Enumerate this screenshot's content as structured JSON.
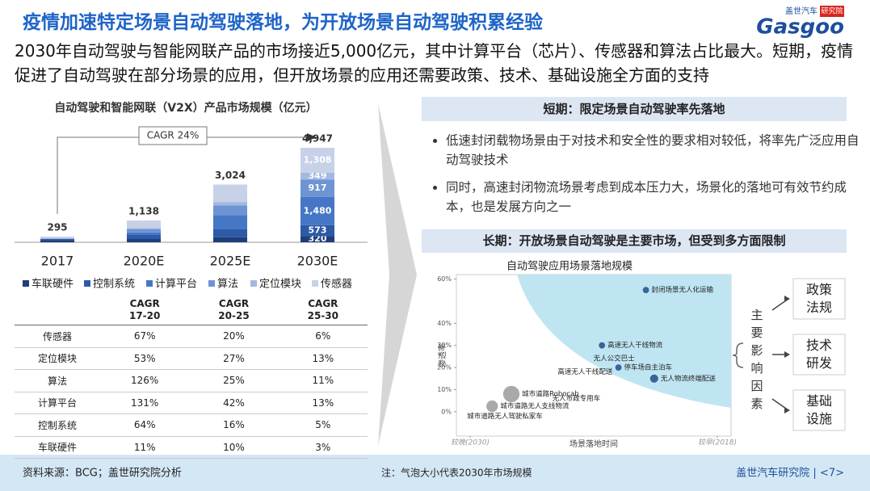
{
  "header": {
    "title": "疫情加速特定场景自动驾驶落地，为开放场景自动驾驶积累经验",
    "logo_cn": "盖世汽车",
    "logo_badge": "研究院",
    "logo_en": "Gasgoo"
  },
  "subtitle": "2030年自动驾驶与智能网联产品的市场接近5,000亿元，其中计算平台（芯片）、传感器和算法占比最大。短期，疫情促进了自动驾驶在部分场景的应用，但开放场景的应用还需要政策、技术、基础设施全方面的支持",
  "chart_data": [
    {
      "type": "bar",
      "stacked": true,
      "title": "自动驾驶和智能网联（V2X）产品市场规模（亿元）",
      "categories": [
        "2017",
        "2020E",
        "2025E",
        "2030E"
      ],
      "ylim": [
        0,
        5500
      ],
      "series": [
        {
          "name": "车联硬件",
          "color": "#1f3d7a",
          "values": [
            122,
            169,
            258,
            320
          ],
          "value_labels": [
            null,
            null,
            null,
            "320"
          ]
        },
        {
          "name": "控制系统",
          "color": "#2d5aa6",
          "values": [
            48,
            211,
            419,
            573
          ],
          "value_labels": [
            null,
            null,
            null,
            "573"
          ]
        },
        {
          "name": "计算平台",
          "color": "#4677c6",
          "values": [
            11,
            137,
            750,
            1480
          ],
          "value_labels": [
            null,
            null,
            null,
            "1,480"
          ]
        },
        {
          "name": "算法",
          "color": "#6f94d3",
          "values": [
            15,
            176,
            508,
            917
          ],
          "value_labels": [
            null,
            null,
            null,
            "917"
          ]
        },
        {
          "name": "定位模块",
          "color": "#a4b9e0",
          "values": [
            16,
            57,
            177,
            349
          ],
          "value_labels": [
            null,
            null,
            null,
            "349"
          ]
        },
        {
          "name": "传感器",
          "color": "#c7d1e8",
          "values": [
            83,
            388,
            912,
            1308
          ],
          "value_labels": [
            null,
            null,
            null,
            "1,308"
          ]
        }
      ],
      "totals": {
        "values": [
          295,
          1138,
          3024,
          4947
        ],
        "value_labels": [
          "295",
          "1,138",
          "3,024",
          "4,947"
        ]
      },
      "annotation": "CAGR 24%"
    },
    {
      "type": "scatter",
      "title": "自动驾驶应用场景落地规模",
      "x_label": "场景落地时间",
      "y_label": "渗透率",
      "xlim": [
        0,
        10
      ],
      "ylim": [
        -11,
        62
      ],
      "xticks": [
        {
          "value": 0.5,
          "label": "较晚(2030)"
        },
        {
          "value": 9.5,
          "label": "较早(2018)"
        }
      ],
      "yticks": [
        {
          "value": 0,
          "label": "0%"
        },
        {
          "value": 10,
          "label": "10%"
        },
        {
          "value": 20,
          "label": "20%"
        },
        {
          "value": 30,
          "label": "30%"
        },
        {
          "value": 40,
          "label": "40%"
        },
        {
          "value": 60,
          "label": "60%"
        }
      ],
      "points": [
        {
          "name": "封闭场景无人化运输",
          "x": 6.9,
          "y": 55,
          "size": 1.5,
          "color": "#1f4e8c"
        },
        {
          "name": "高速无人干线物流",
          "x": 5.3,
          "y": 30,
          "size": 1.5,
          "color": "#1f4e8c"
        },
        {
          "name": "无人公交巴士",
          "x": 4.9,
          "y": 24,
          "size": 0,
          "color": "#1f4e8c"
        },
        {
          "name": "高速无人干线配送",
          "x": 3.6,
          "y": 18,
          "size": 0,
          "color": "#1f4e8c"
        },
        {
          "name": "停车场自主泊车",
          "x": 5.9,
          "y": 20,
          "size": 1.5,
          "color": "#1f4e8c"
        },
        {
          "name": "无人物流终端配送",
          "x": 7.2,
          "y": 15,
          "size": 2.5,
          "color": "#1f4e8c"
        },
        {
          "name": "城市道路Robocab",
          "x": 2,
          "y": 8,
          "size": 10,
          "color": "#9a9a9a"
        },
        {
          "name": "无人市政专用车",
          "x": 3.4,
          "y": 6,
          "size": 0,
          "color": "#9a9a9a"
        },
        {
          "name": "城市道路无人支线物流",
          "x": 1.3,
          "y": 2.5,
          "size": 5,
          "color": "#9a9a9a"
        },
        {
          "name": "城市道路无人驾驶私家车",
          "x": 0.3,
          "y": -2,
          "size": 0,
          "color": "#9a9a9a"
        }
      ]
    }
  ],
  "table": {
    "header": [
      "CAGR\n17-20",
      "CAGR\n20-25",
      "CAGR\n25-30"
    ],
    "rows": [
      [
        "传感器",
        "67%",
        "20%",
        "6%"
      ],
      [
        "定位模块",
        "53%",
        "27%",
        "13%"
      ],
      [
        "算法",
        "126%",
        "25%",
        "11%"
      ],
      [
        "计算平台",
        "131%",
        "42%",
        "13%"
      ],
      [
        "控制系统",
        "64%",
        "16%",
        "5%"
      ],
      [
        "车联硬件",
        "11%",
        "10%",
        "3%"
      ]
    ]
  },
  "right_panel": {
    "short_term_heading": "短期：限定场景自动驾驶率先落地",
    "bullets": [
      "低速封闭载物场景由于对技术和安全性的要求相对较低，将率先广泛应用自动驾驶技术",
      "同时，高速封闭物流场景考虑到成本压力大，场景化的落地可有效节约成本，也是发展方向之一"
    ],
    "long_term_heading": "长期：开放场景自动驾驶是主要市场，但受到多方面限制"
  },
  "factors": {
    "label": "主要影响因素",
    "items": [
      "政策\n法规",
      "技术\n研发",
      "基础\n设施"
    ]
  },
  "footer": {
    "source": "资料来源：BCG；盖世研究院分析",
    "note": "注：气泡大小代表2030年市场规模",
    "brand": "盖世汽车研究院 | <7>"
  }
}
